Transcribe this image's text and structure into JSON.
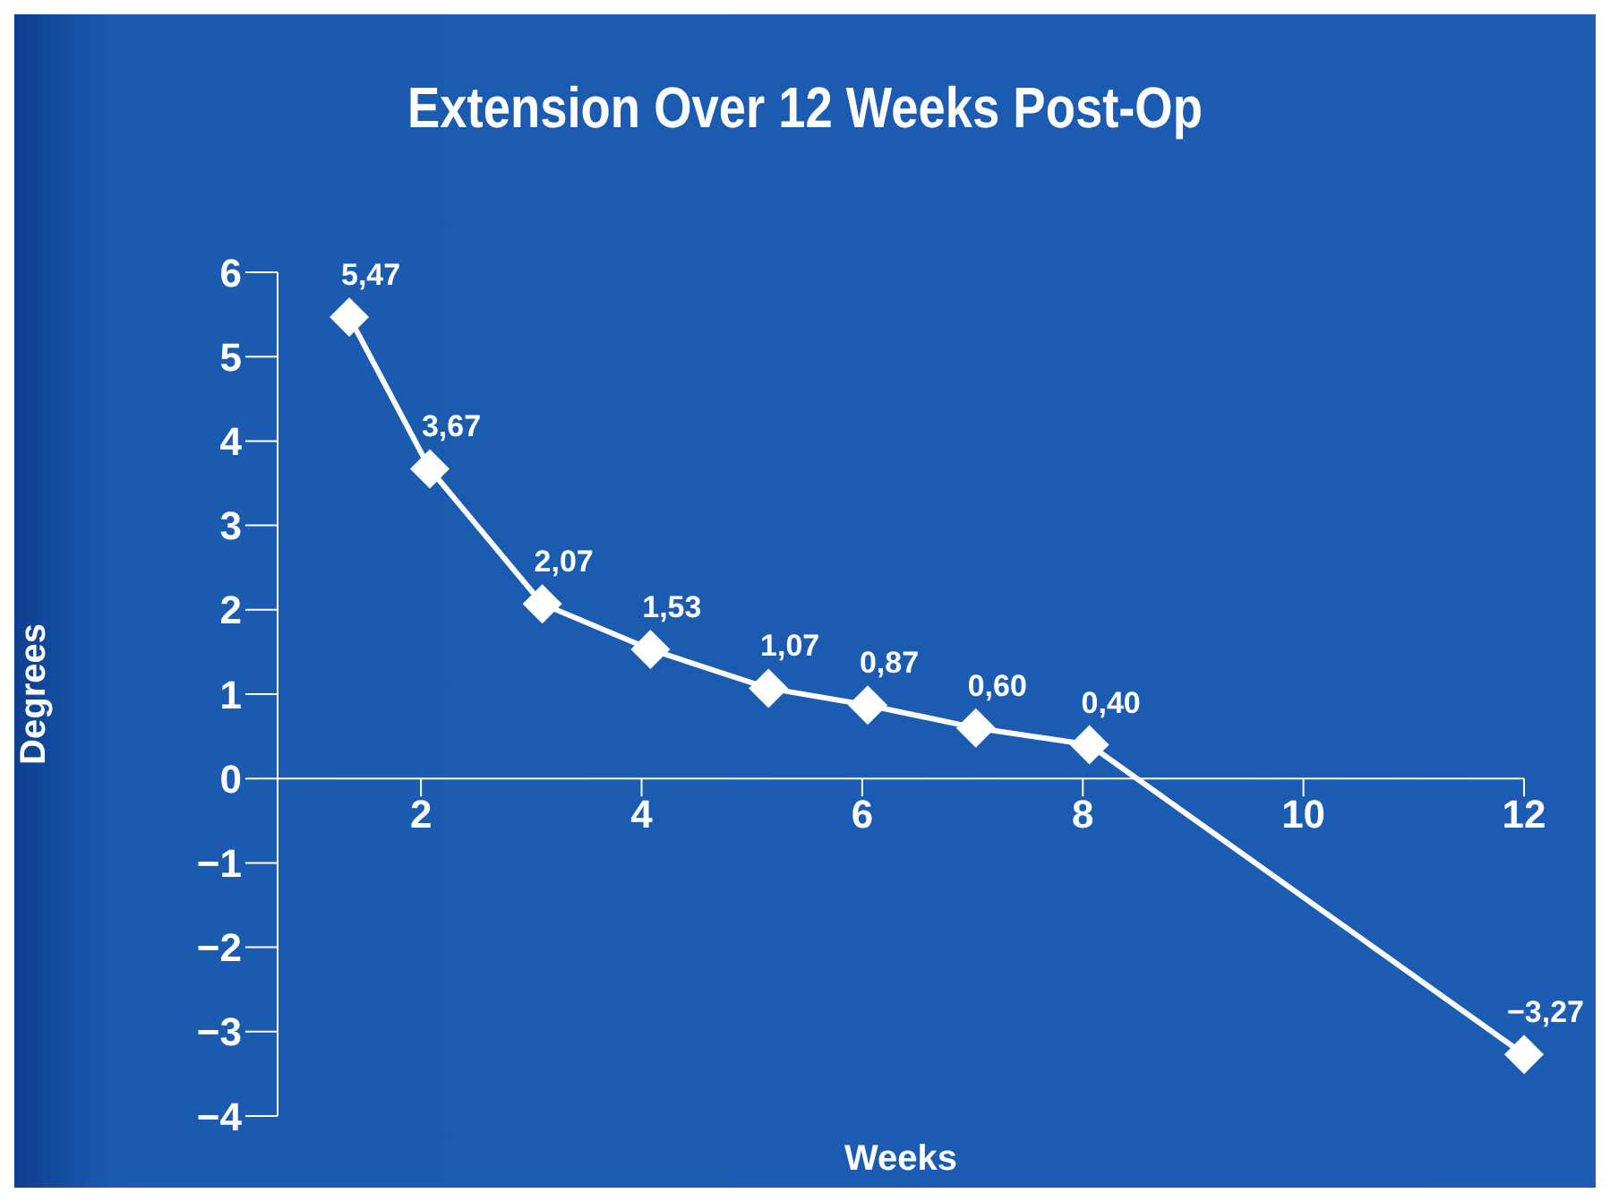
{
  "chart_data": {
    "type": "line",
    "title": "Extension Over 12 Weeks Post-Op",
    "xlabel": "Weeks",
    "ylabel": "Degrees",
    "x": [
      1.35,
      2.08,
      3.1,
      4.08,
      5.15,
      6.05,
      7.03,
      8.06,
      12
    ],
    "series": [
      {
        "color": "#ffffff",
        "values": [
          5.47,
          3.67,
          2.07,
          1.53,
          1.07,
          0.87,
          0.6,
          0.4,
          -3.27
        ],
        "value_labels": [
          "5,47",
          "3,67",
          "2,07",
          "1,53",
          "1,07",
          "0,87",
          "0,60",
          "0,40",
          "−3,27"
        ]
      }
    ],
    "xlim": [
      0.7,
      12
    ],
    "xticks": [
      2,
      4,
      6,
      8,
      10,
      12
    ],
    "ylim": [
      -4,
      6
    ],
    "yticks": [
      {
        "value": -4,
        "label": "−4"
      },
      {
        "value": -3,
        "label": "−3"
      },
      {
        "value": -2,
        "label": "−2"
      },
      {
        "value": -1,
        "label": "−1"
      },
      0,
      1,
      2,
      3,
      4,
      5,
      6
    ],
    "grid": false,
    "legend": false,
    "marker": "diamond",
    "line_style": "solid"
  }
}
